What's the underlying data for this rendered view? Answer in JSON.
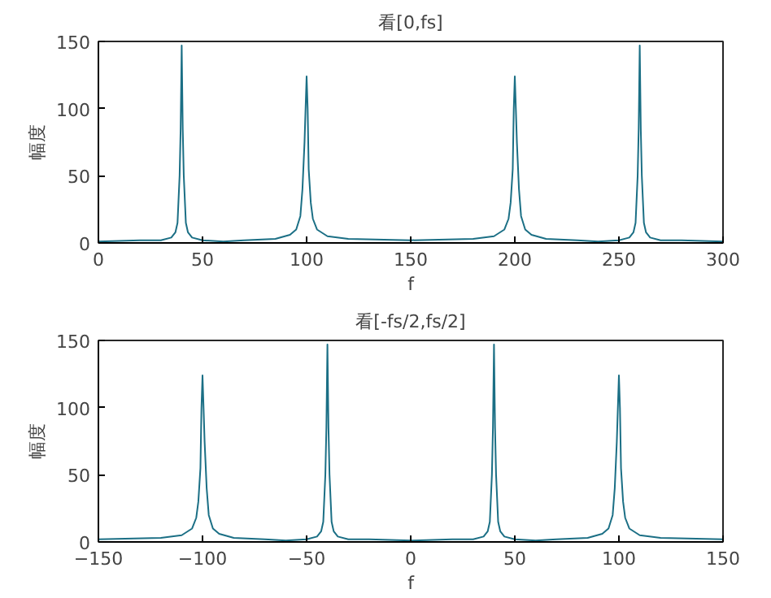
{
  "chart_data": [
    {
      "type": "line",
      "title": "看[0,fs]",
      "xlabel": "f",
      "ylabel": "幅度",
      "xlim": [
        0,
        300
      ],
      "ylim": [
        0,
        150
      ],
      "xticks": [
        0,
        50,
        100,
        150,
        200,
        250,
        300
      ],
      "yticks": [
        0,
        50,
        100,
        150
      ],
      "grid": false,
      "series": [
        {
          "color": "#1b6f85",
          "x": [
            0,
            20,
            30,
            35,
            37,
            38,
            39,
            39.5,
            40,
            40.5,
            41,
            42,
            43,
            45,
            50,
            60,
            70,
            85,
            92,
            95,
            97,
            98,
            99,
            99.5,
            100,
            100.5,
            101,
            102,
            103,
            105,
            110,
            120,
            150,
            180,
            190,
            195,
            197,
            198,
            199,
            199.5,
            200,
            200.5,
            201,
            202,
            203,
            205,
            208,
            215,
            230,
            240,
            250,
            255,
            257,
            258,
            259,
            259.5,
            260,
            260.5,
            261,
            262,
            263,
            265,
            270,
            280,
            300
          ],
          "values": [
            1,
            2,
            2,
            4,
            8,
            15,
            50,
            85,
            147,
            85,
            50,
            15,
            8,
            4,
            2,
            1,
            2,
            3,
            6,
            10,
            20,
            40,
            75,
            100,
            124,
            100,
            55,
            30,
            18,
            10,
            5,
            3,
            2,
            3,
            5,
            10,
            18,
            30,
            55,
            100,
            124,
            100,
            75,
            40,
            20,
            10,
            6,
            3,
            2,
            1,
            2,
            4,
            8,
            15,
            50,
            85,
            147,
            85,
            50,
            15,
            8,
            4,
            2,
            2,
            1
          ]
        }
      ]
    },
    {
      "type": "line",
      "title": "看[-fs/2,fs/2]",
      "xlabel": "f",
      "ylabel": "幅度",
      "xlim": [
        -150,
        150
      ],
      "ylim": [
        0,
        150
      ],
      "xticks": [
        -150,
        -100,
        -50,
        0,
        50,
        100,
        150
      ],
      "yticks": [
        0,
        50,
        100,
        150
      ],
      "grid": false,
      "series": [
        {
          "color": "#1b6f85",
          "x": [
            -150,
            -120,
            -110,
            -105,
            -103,
            -102,
            -101,
            -100.5,
            -100,
            -99.5,
            -99,
            -98,
            -97,
            -95,
            -92,
            -85,
            -70,
            -60,
            -50,
            -45,
            -43,
            -42,
            -41,
            -40.5,
            -40,
            -39.5,
            -39,
            -38,
            -37,
            -35,
            -30,
            -20,
            0,
            20,
            30,
            35,
            37,
            38,
            39,
            39.5,
            40,
            40.5,
            41,
            42,
            43,
            45,
            50,
            60,
            70,
            85,
            92,
            95,
            97,
            98,
            99,
            99.5,
            100,
            100.5,
            101,
            102,
            103,
            105,
            110,
            120,
            150
          ],
          "values": [
            2,
            3,
            5,
            10,
            18,
            30,
            55,
            100,
            124,
            100,
            75,
            40,
            20,
            10,
            6,
            3,
            2,
            1,
            2,
            4,
            8,
            15,
            50,
            85,
            147,
            85,
            50,
            15,
            8,
            4,
            2,
            2,
            1,
            2,
            2,
            4,
            8,
            15,
            50,
            85,
            147,
            85,
            50,
            15,
            8,
            4,
            2,
            1,
            2,
            3,
            6,
            10,
            20,
            40,
            75,
            100,
            124,
            100,
            55,
            30,
            18,
            10,
            5,
            3,
            2
          ]
        }
      ]
    }
  ]
}
